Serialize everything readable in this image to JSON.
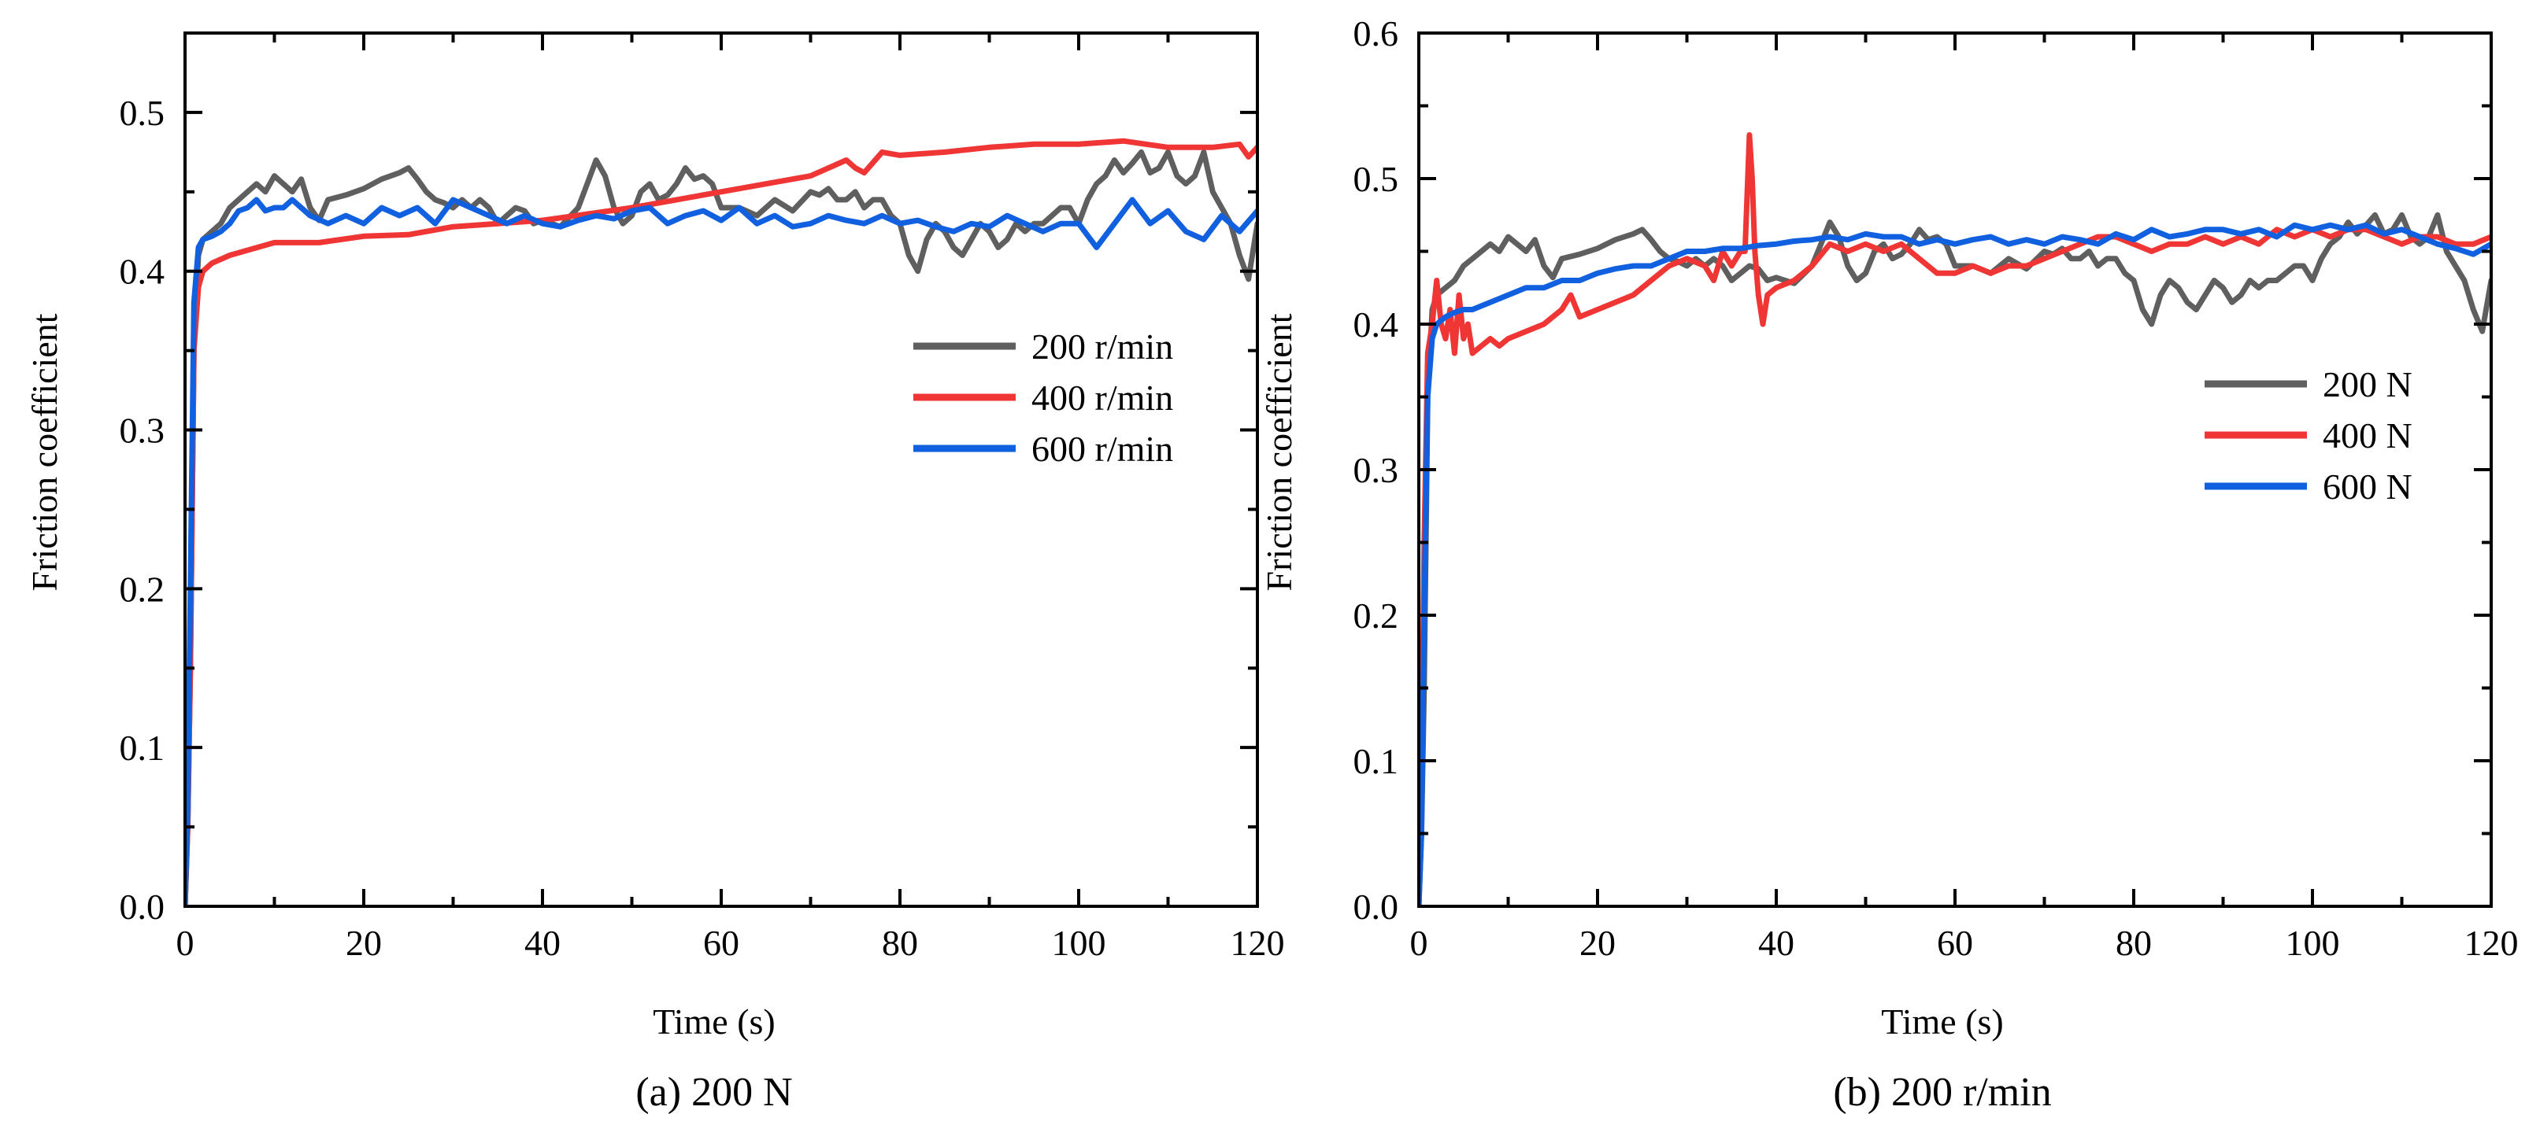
{
  "colors": {
    "gray": "#5f5f5f",
    "red": "#f03535",
    "blue": "#1060e0",
    "axis": "#000000"
  },
  "chart_data": [
    {
      "type": "line",
      "caption": "(a) 200 N",
      "xlabel": "Time (s)",
      "ylabel": "Friction coefficient",
      "xlim": [
        0,
        120
      ],
      "ylim": [
        0,
        0.55
      ],
      "xticks": [
        0,
        20,
        40,
        60,
        80,
        100,
        120
      ],
      "xtick_labels": [
        "0",
        "20",
        "40",
        "60",
        "80",
        "100",
        "120"
      ],
      "yticks": [
        0,
        0.1,
        0.2,
        0.3,
        0.4,
        0.5
      ],
      "ytick_labels": [
        "0.0",
        "0.1",
        "0.2",
        "0.3",
        "0.4",
        "0.5"
      ],
      "legend_position": "right",
      "series": [
        {
          "name": "200 r/min",
          "color": "#5f5f5f",
          "x": [
            0,
            0.3,
            0.6,
            1,
            1.5,
            2,
            3,
            4,
            5,
            6,
            7,
            8,
            9,
            10,
            11,
            12,
            13,
            14,
            15,
            16,
            18,
            20,
            22,
            24,
            25,
            26,
            27,
            28,
            29,
            30,
            31,
            32,
            33,
            34,
            35,
            36,
            37,
            38,
            39,
            40,
            42,
            44,
            45,
            46,
            47,
            48,
            49,
            50,
            51,
            52,
            53,
            54,
            55,
            56,
            57,
            58,
            59,
            60,
            62,
            64,
            66,
            68,
            70,
            71,
            72,
            73,
            74,
            75,
            76,
            77,
            78,
            79,
            80,
            81,
            82,
            83,
            84,
            85,
            86,
            87,
            88,
            89,
            90,
            91,
            92,
            93,
            94,
            95,
            96,
            97,
            98,
            99,
            100,
            101,
            102,
            103,
            104,
            105,
            106,
            107,
            108,
            109,
            110,
            111,
            112,
            113,
            114,
            115,
            116,
            117,
            118,
            119,
            120
          ],
          "y": [
            0,
            0.05,
            0.15,
            0.35,
            0.41,
            0.42,
            0.425,
            0.43,
            0.44,
            0.445,
            0.45,
            0.455,
            0.45,
            0.46,
            0.455,
            0.45,
            0.458,
            0.44,
            0.432,
            0.445,
            0.448,
            0.452,
            0.458,
            0.462,
            0.465,
            0.458,
            0.45,
            0.445,
            0.443,
            0.44,
            0.445,
            0.44,
            0.445,
            0.44,
            0.43,
            0.435,
            0.44,
            0.438,
            0.43,
            0.432,
            0.428,
            0.44,
            0.455,
            0.47,
            0.46,
            0.44,
            0.43,
            0.435,
            0.45,
            0.455,
            0.445,
            0.448,
            0.455,
            0.465,
            0.458,
            0.46,
            0.455,
            0.44,
            0.44,
            0.435,
            0.445,
            0.438,
            0.45,
            0.448,
            0.452,
            0.445,
            0.445,
            0.45,
            0.44,
            0.445,
            0.445,
            0.435,
            0.43,
            0.41,
            0.4,
            0.42,
            0.43,
            0.425,
            0.415,
            0.41,
            0.42,
            0.43,
            0.425,
            0.415,
            0.42,
            0.43,
            0.425,
            0.43,
            0.43,
            0.435,
            0.44,
            0.44,
            0.43,
            0.445,
            0.455,
            0.46,
            0.47,
            0.462,
            0.468,
            0.475,
            0.462,
            0.465,
            0.475,
            0.46,
            0.455,
            0.46,
            0.475,
            0.45,
            0.44,
            0.43,
            0.41,
            0.395,
            0.43
          ]
        },
        {
          "name": "400 r/min",
          "color": "#f03535",
          "x": [
            0,
            0.3,
            0.6,
            1,
            1.5,
            2,
            3,
            5,
            10,
            15,
            20,
            25,
            30,
            35,
            40,
            45,
            50,
            55,
            60,
            65,
            70,
            74,
            75,
            76,
            78,
            80,
            85,
            90,
            95,
            100,
            105,
            110,
            115,
            118,
            119,
            120
          ],
          "y": [
            0,
            0.05,
            0.15,
            0.35,
            0.39,
            0.4,
            0.405,
            0.41,
            0.418,
            0.418,
            0.422,
            0.423,
            0.428,
            0.43,
            0.432,
            0.436,
            0.44,
            0.445,
            0.45,
            0.455,
            0.46,
            0.47,
            0.465,
            0.462,
            0.475,
            0.473,
            0.475,
            0.478,
            0.48,
            0.48,
            0.482,
            0.478,
            0.478,
            0.48,
            0.472,
            0.478
          ]
        },
        {
          "name": "600 r/min",
          "color": "#1060e0",
          "x": [
            0,
            0.3,
            0.6,
            1,
            1.5,
            2,
            3,
            4,
            5,
            6,
            7,
            8,
            9,
            10,
            11,
            12,
            14,
            16,
            18,
            20,
            22,
            24,
            26,
            28,
            30,
            32,
            34,
            36,
            38,
            40,
            42,
            44,
            46,
            48,
            50,
            52,
            54,
            56,
            58,
            60,
            62,
            64,
            66,
            68,
            70,
            72,
            74,
            76,
            78,
            80,
            82,
            84,
            86,
            88,
            90,
            92,
            94,
            96,
            98,
            100,
            102,
            104,
            106,
            108,
            110,
            112,
            114,
            116,
            118,
            120
          ],
          "y": [
            0,
            0.06,
            0.2,
            0.38,
            0.415,
            0.42,
            0.422,
            0.425,
            0.43,
            0.438,
            0.44,
            0.445,
            0.438,
            0.44,
            0.44,
            0.445,
            0.435,
            0.43,
            0.435,
            0.43,
            0.44,
            0.435,
            0.44,
            0.43,
            0.445,
            0.44,
            0.435,
            0.43,
            0.435,
            0.43,
            0.428,
            0.432,
            0.435,
            0.433,
            0.438,
            0.44,
            0.43,
            0.435,
            0.438,
            0.432,
            0.44,
            0.43,
            0.435,
            0.428,
            0.43,
            0.435,
            0.432,
            0.43,
            0.435,
            0.43,
            0.432,
            0.428,
            0.425,
            0.43,
            0.428,
            0.435,
            0.43,
            0.425,
            0.43,
            0.43,
            0.415,
            0.43,
            0.445,
            0.43,
            0.438,
            0.425,
            0.42,
            0.435,
            0.425,
            0.438
          ]
        }
      ]
    },
    {
      "type": "line",
      "caption": "(b) 200 r/min",
      "xlabel": "Time (s)",
      "ylabel": "Friction coefficient",
      "xlim": [
        0,
        120
      ],
      "ylim": [
        0,
        0.6
      ],
      "xticks": [
        0,
        20,
        40,
        60,
        80,
        100,
        120
      ],
      "xtick_labels": [
        "0",
        "20",
        "40",
        "60",
        "80",
        "100",
        "120"
      ],
      "yticks": [
        0,
        0.1,
        0.2,
        0.3,
        0.4,
        0.5,
        0.6
      ],
      "ytick_labels": [
        "0.0",
        "0.1",
        "0.2",
        "0.3",
        "0.4",
        "0.5",
        "0.6"
      ],
      "legend_position": "right",
      "series": [
        {
          "name": "200 N",
          "color": "#5f5f5f",
          "x": [
            0,
            0.3,
            0.6,
            1,
            1.5,
            2,
            3,
            4,
            5,
            6,
            7,
            8,
            9,
            10,
            11,
            12,
            13,
            14,
            15,
            16,
            18,
            20,
            22,
            24,
            25,
            26,
            27,
            28,
            29,
            30,
            31,
            32,
            33,
            34,
            35,
            36,
            37,
            38,
            39,
            40,
            42,
            44,
            45,
            46,
            47,
            48,
            49,
            50,
            51,
            52,
            53,
            54,
            55,
            56,
            57,
            58,
            59,
            60,
            62,
            64,
            66,
            68,
            70,
            71,
            72,
            73,
            74,
            75,
            76,
            77,
            78,
            79,
            80,
            81,
            82,
            83,
            84,
            85,
            86,
            87,
            88,
            89,
            90,
            91,
            92,
            93,
            94,
            95,
            96,
            97,
            98,
            99,
            100,
            101,
            102,
            103,
            104,
            105,
            106,
            107,
            108,
            109,
            110,
            111,
            112,
            113,
            114,
            115,
            116,
            117,
            118,
            119,
            120
          ],
          "y": [
            0,
            0.05,
            0.15,
            0.35,
            0.41,
            0.42,
            0.425,
            0.43,
            0.44,
            0.445,
            0.45,
            0.455,
            0.45,
            0.46,
            0.455,
            0.45,
            0.458,
            0.44,
            0.432,
            0.445,
            0.448,
            0.452,
            0.458,
            0.462,
            0.465,
            0.458,
            0.45,
            0.445,
            0.443,
            0.44,
            0.445,
            0.44,
            0.445,
            0.44,
            0.43,
            0.435,
            0.44,
            0.438,
            0.43,
            0.432,
            0.428,
            0.44,
            0.455,
            0.47,
            0.46,
            0.44,
            0.43,
            0.435,
            0.45,
            0.455,
            0.445,
            0.448,
            0.455,
            0.465,
            0.458,
            0.46,
            0.455,
            0.44,
            0.44,
            0.435,
            0.445,
            0.438,
            0.45,
            0.448,
            0.452,
            0.445,
            0.445,
            0.45,
            0.44,
            0.445,
            0.445,
            0.435,
            0.43,
            0.41,
            0.4,
            0.42,
            0.43,
            0.425,
            0.415,
            0.41,
            0.42,
            0.43,
            0.425,
            0.415,
            0.42,
            0.43,
            0.425,
            0.43,
            0.43,
            0.435,
            0.44,
            0.44,
            0.43,
            0.445,
            0.455,
            0.46,
            0.47,
            0.462,
            0.468,
            0.475,
            0.462,
            0.465,
            0.475,
            0.46,
            0.455,
            0.46,
            0.475,
            0.45,
            0.44,
            0.43,
            0.41,
            0.395,
            0.43
          ]
        },
        {
          "name": "400 N",
          "color": "#f03535",
          "x": [
            0,
            0.3,
            0.6,
            1,
            1.5,
            2,
            2.5,
            3,
            3.5,
            4,
            4.5,
            5,
            5.5,
            6,
            7,
            8,
            9,
            10,
            12,
            14,
            16,
            17,
            18,
            20,
            22,
            24,
            26,
            28,
            30,
            32,
            33,
            34,
            35,
            36,
            36.5,
            37,
            37.3,
            37.6,
            38,
            38.5,
            39,
            40,
            42,
            44,
            46,
            48,
            50,
            52,
            54,
            56,
            58,
            60,
            62,
            64,
            66,
            68,
            70,
            72,
            74,
            76,
            78,
            80,
            82,
            84,
            86,
            88,
            90,
            92,
            94,
            96,
            98,
            100,
            102,
            104,
            106,
            108,
            110,
            112,
            114,
            116,
            118,
            120
          ],
          "y": [
            0,
            0.08,
            0.25,
            0.38,
            0.4,
            0.43,
            0.4,
            0.39,
            0.41,
            0.38,
            0.42,
            0.39,
            0.4,
            0.38,
            0.385,
            0.39,
            0.385,
            0.39,
            0.395,
            0.4,
            0.41,
            0.42,
            0.405,
            0.41,
            0.415,
            0.42,
            0.43,
            0.44,
            0.445,
            0.44,
            0.43,
            0.45,
            0.44,
            0.45,
            0.45,
            0.53,
            0.5,
            0.45,
            0.42,
            0.4,
            0.42,
            0.425,
            0.43,
            0.44,
            0.455,
            0.45,
            0.455,
            0.45,
            0.455,
            0.445,
            0.435,
            0.435,
            0.44,
            0.435,
            0.44,
            0.44,
            0.445,
            0.45,
            0.455,
            0.46,
            0.46,
            0.455,
            0.45,
            0.455,
            0.455,
            0.46,
            0.455,
            0.46,
            0.455,
            0.465,
            0.46,
            0.465,
            0.46,
            0.465,
            0.465,
            0.46,
            0.455,
            0.46,
            0.46,
            0.455,
            0.455,
            0.46
          ]
        },
        {
          "name": "600 N",
          "color": "#1060e0",
          "x": [
            0,
            0.3,
            0.6,
            1,
            1.5,
            2,
            3,
            4,
            5,
            6,
            8,
            10,
            12,
            14,
            16,
            18,
            20,
            22,
            24,
            26,
            28,
            30,
            32,
            34,
            36,
            38,
            40,
            42,
            44,
            46,
            48,
            50,
            52,
            54,
            56,
            58,
            60,
            62,
            64,
            66,
            68,
            70,
            72,
            74,
            76,
            78,
            80,
            82,
            84,
            86,
            88,
            90,
            92,
            94,
            96,
            98,
            100,
            102,
            104,
            106,
            108,
            110,
            112,
            114,
            116,
            118,
            120
          ],
          "y": [
            0,
            0.05,
            0.2,
            0.35,
            0.39,
            0.4,
            0.405,
            0.408,
            0.41,
            0.41,
            0.415,
            0.42,
            0.425,
            0.425,
            0.43,
            0.43,
            0.435,
            0.438,
            0.44,
            0.44,
            0.445,
            0.45,
            0.45,
            0.452,
            0.452,
            0.454,
            0.455,
            0.457,
            0.458,
            0.46,
            0.458,
            0.462,
            0.46,
            0.46,
            0.455,
            0.458,
            0.455,
            0.458,
            0.46,
            0.455,
            0.458,
            0.455,
            0.46,
            0.458,
            0.455,
            0.462,
            0.458,
            0.465,
            0.46,
            0.462,
            0.465,
            0.465,
            0.462,
            0.465,
            0.46,
            0.468,
            0.465,
            0.468,
            0.465,
            0.468,
            0.462,
            0.465,
            0.46,
            0.455,
            0.452,
            0.448,
            0.455
          ]
        }
      ]
    }
  ]
}
